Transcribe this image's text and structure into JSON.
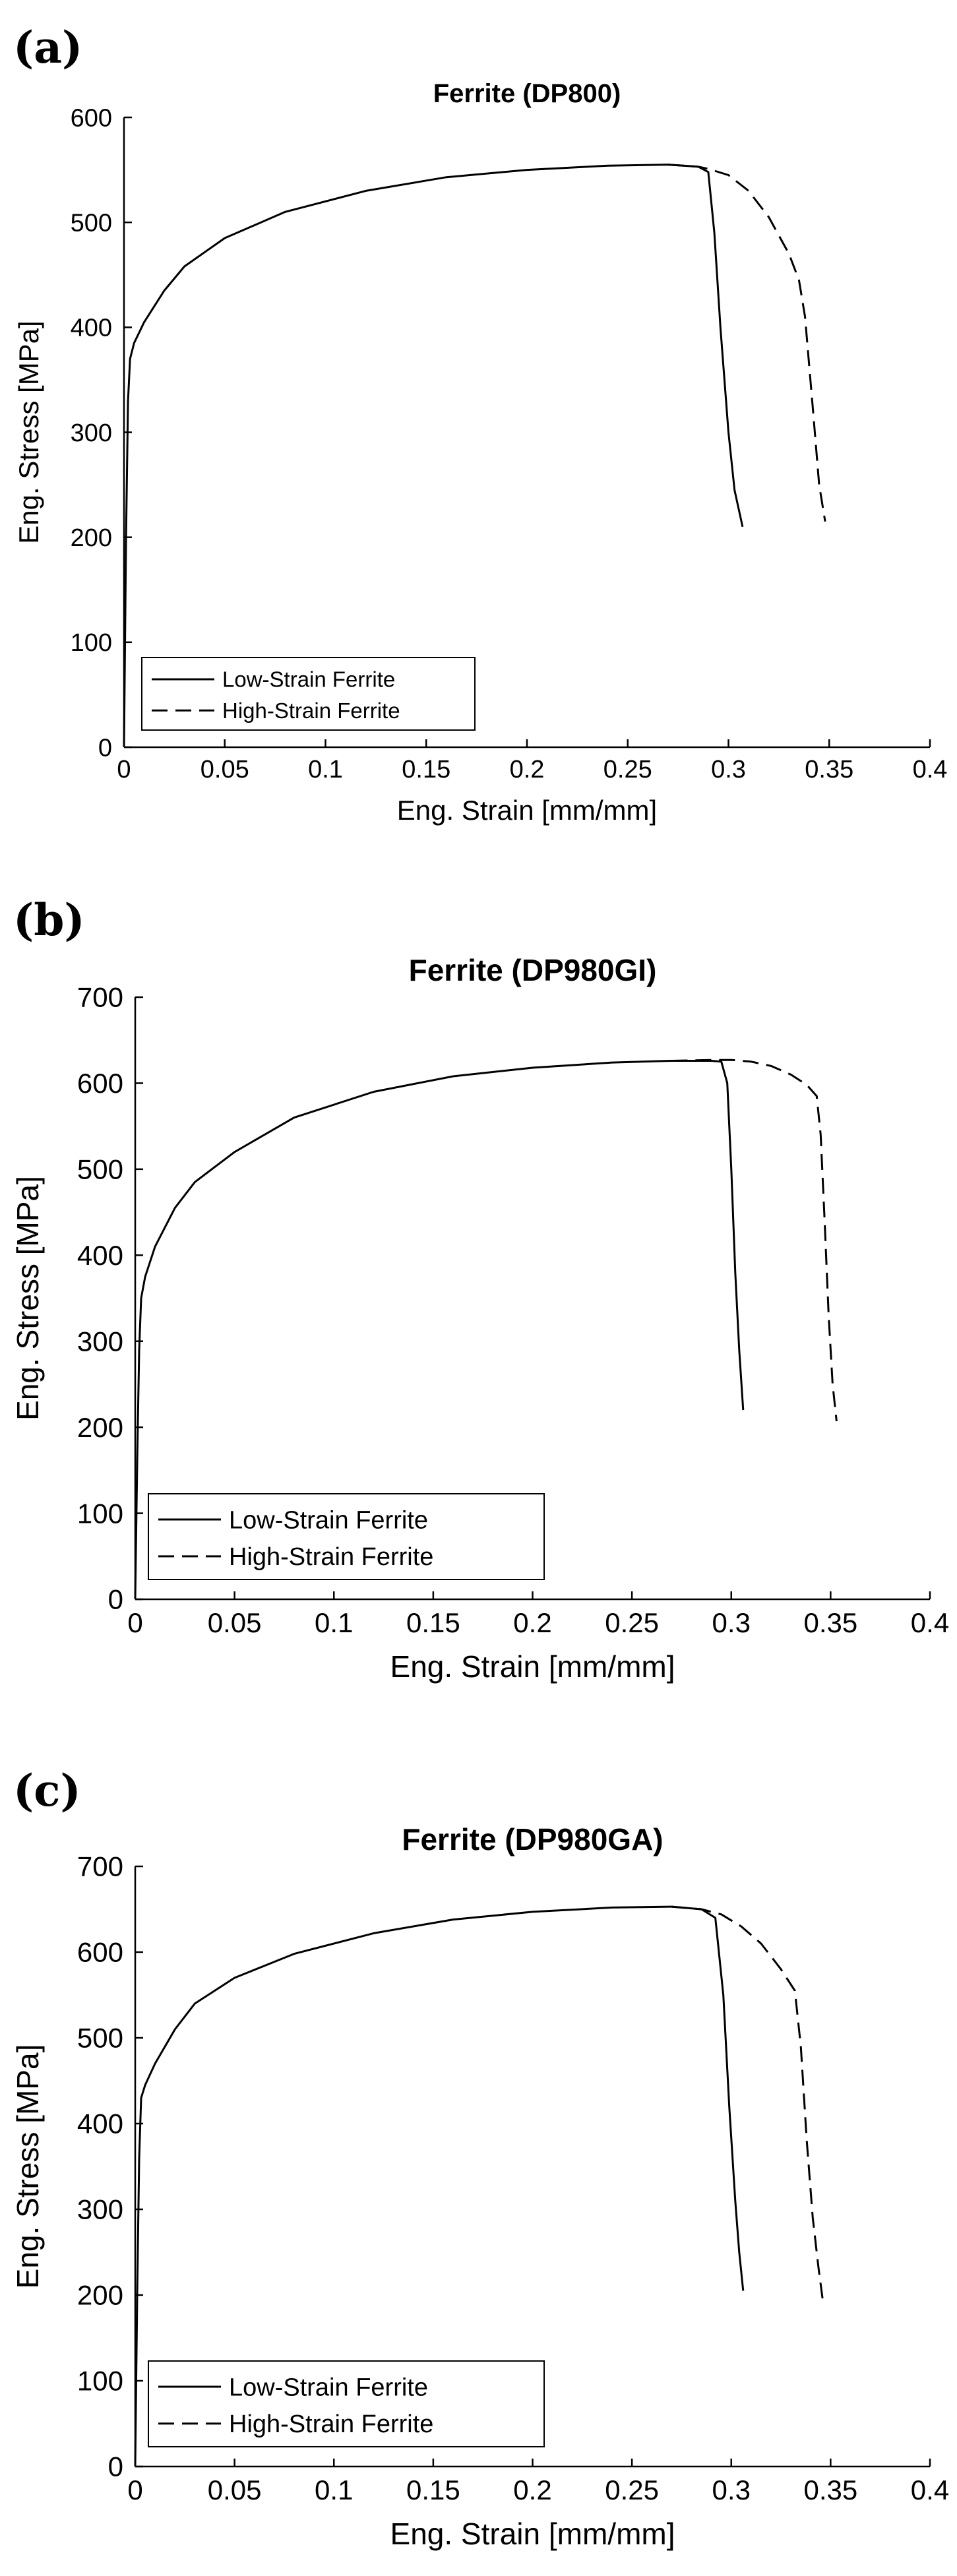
{
  "chart_data": [
    {
      "panel_label": "(a)",
      "type": "line",
      "title": "Ferrite (DP800)",
      "xlabel": "Eng. Strain [mm/mm]",
      "ylabel": "Eng. Stress [MPa]",
      "xlim": [
        0,
        0.4
      ],
      "ylim": [
        0,
        600
      ],
      "xticks": [
        "0",
        "0.05",
        "0.1",
        "0.15",
        "0.2",
        "0.25",
        "0.3",
        "0.35",
        "0.4"
      ],
      "yticks": [
        "0",
        "100",
        "200",
        "300",
        "400",
        "500",
        "600"
      ],
      "grid": false,
      "legend_position": "bottom-left",
      "series": [
        {
          "name": "Low-Strain Ferrite",
          "dash": "solid",
          "x": [
            0,
            0.001,
            0.002,
            0.003,
            0.005,
            0.01,
            0.02,
            0.03,
            0.05,
            0.08,
            0.12,
            0.16,
            0.2,
            0.24,
            0.27,
            0.285,
            0.29,
            0.293,
            0.296,
            0.3,
            0.303,
            0.307
          ],
          "y": [
            0,
            200,
            330,
            370,
            385,
            405,
            435,
            458,
            485,
            510,
            530,
            543,
            550,
            554,
            555,
            553,
            548,
            490,
            400,
            300,
            245,
            210
          ]
        },
        {
          "name": "High-Strain Ferrite",
          "dash": "dashed",
          "x": [
            0.27,
            0.285,
            0.29,
            0.3,
            0.31,
            0.32,
            0.33,
            0.335,
            0.338,
            0.342,
            0.345,
            0.348
          ],
          "y": [
            555,
            553,
            551,
            545,
            530,
            505,
            470,
            445,
            410,
            320,
            250,
            215
          ]
        }
      ]
    },
    {
      "panel_label": "(b)",
      "type": "line",
      "title": "Ferrite (DP980GI)",
      "xlabel": "Eng. Strain [mm/mm]",
      "ylabel": "Eng. Stress [MPa]",
      "xlim": [
        0,
        0.4
      ],
      "ylim": [
        0,
        700
      ],
      "xticks": [
        "0",
        "0.05",
        "0.1",
        "0.15",
        "0.2",
        "0.25",
        "0.3",
        "0.35",
        "0.4"
      ],
      "yticks": [
        "0",
        "100",
        "200",
        "300",
        "400",
        "500",
        "600",
        "700"
      ],
      "grid": false,
      "legend_position": "bottom-left",
      "series": [
        {
          "name": "Low-Strain Ferrite",
          "dash": "solid",
          "x": [
            0,
            0.001,
            0.002,
            0.003,
            0.005,
            0.01,
            0.02,
            0.03,
            0.05,
            0.08,
            0.12,
            0.16,
            0.2,
            0.24,
            0.27,
            0.29,
            0.295,
            0.298,
            0.3,
            0.302,
            0.304,
            0.306
          ],
          "y": [
            0,
            160,
            290,
            350,
            375,
            410,
            455,
            485,
            520,
            560,
            590,
            608,
            618,
            624,
            626,
            626,
            625,
            600,
            500,
            380,
            290,
            220
          ]
        },
        {
          "name": "High-Strain Ferrite",
          "dash": "dashed",
          "x": [
            0.27,
            0.29,
            0.3,
            0.31,
            0.32,
            0.33,
            0.338,
            0.343,
            0.345,
            0.347,
            0.349,
            0.351,
            0.353
          ],
          "y": [
            626,
            627,
            627,
            625,
            620,
            610,
            598,
            585,
            540,
            440,
            330,
            250,
            207
          ]
        }
      ]
    },
    {
      "panel_label": "(c)",
      "type": "line",
      "title": "Ferrite (DP980GA)",
      "xlabel": "Eng. Strain [mm/mm]",
      "ylabel": "Eng. Stress [MPa]",
      "xlim": [
        0,
        0.4
      ],
      "ylim": [
        0,
        700
      ],
      "xticks": [
        "0",
        "0.05",
        "0.1",
        "0.15",
        "0.2",
        "0.25",
        "0.3",
        "0.35",
        "0.4"
      ],
      "yticks": [
        "0",
        "100",
        "200",
        "300",
        "400",
        "500",
        "600",
        "700"
      ],
      "grid": false,
      "legend_position": "bottom-left",
      "series": [
        {
          "name": "Low-Strain Ferrite",
          "dash": "solid",
          "x": [
            0,
            0.001,
            0.002,
            0.003,
            0.005,
            0.01,
            0.02,
            0.03,
            0.05,
            0.08,
            0.12,
            0.16,
            0.2,
            0.24,
            0.27,
            0.285,
            0.292,
            0.296,
            0.299,
            0.302,
            0.304,
            0.306
          ],
          "y": [
            0,
            200,
            360,
            430,
            445,
            470,
            510,
            540,
            570,
            598,
            622,
            638,
            647,
            652,
            653,
            650,
            640,
            550,
            420,
            310,
            250,
            205
          ]
        },
        {
          "name": "High-Strain Ferrite",
          "dash": "dashed",
          "x": [
            0.27,
            0.285,
            0.295,
            0.305,
            0.315,
            0.325,
            0.332,
            0.335,
            0.338,
            0.341,
            0.344,
            0.346
          ],
          "y": [
            653,
            650,
            644,
            630,
            610,
            580,
            555,
            490,
            380,
            290,
            230,
            195
          ]
        }
      ]
    }
  ]
}
